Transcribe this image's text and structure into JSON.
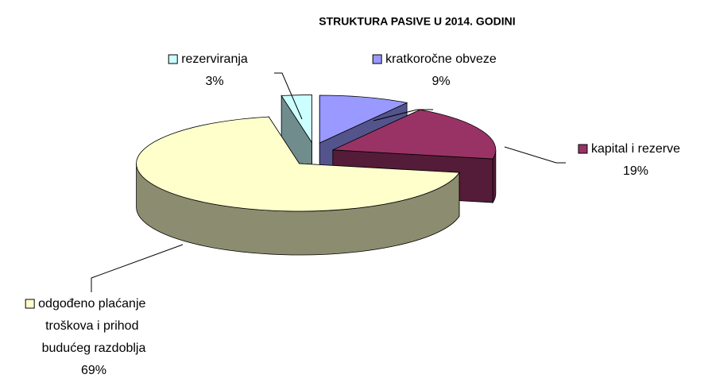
{
  "chart_data": {
    "type": "pie3d",
    "title": "STRUKTURA PASIVE U 2014. GODINI",
    "categories": [
      "kratkoročne obveze",
      "kapital i rezerve",
      "odgođeno plaćanje troškova i prihod budućeg razdoblja",
      "rezerviranja"
    ],
    "values": [
      9,
      19,
      69,
      3
    ],
    "value_labels": [
      "9%",
      "19%",
      "69%",
      "3%"
    ],
    "colors": [
      "#9999ff",
      "#993366",
      "#ffffcc",
      "#ccffff"
    ]
  }
}
